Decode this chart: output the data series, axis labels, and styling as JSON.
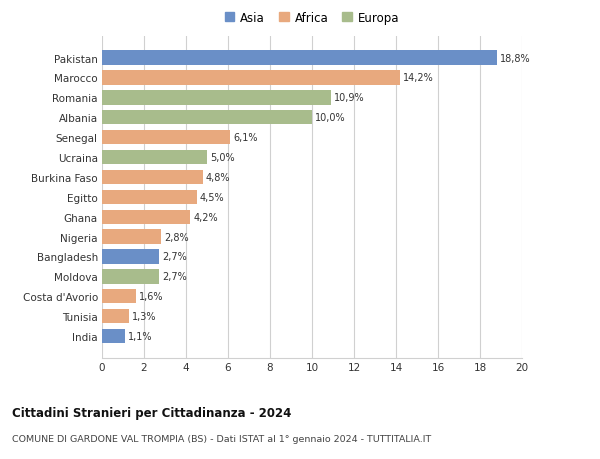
{
  "categories": [
    "India",
    "Tunisia",
    "Costa d'Avorio",
    "Moldova",
    "Bangladesh",
    "Nigeria",
    "Ghana",
    "Egitto",
    "Burkina Faso",
    "Ucraina",
    "Senegal",
    "Albania",
    "Romania",
    "Marocco",
    "Pakistan"
  ],
  "values": [
    1.1,
    1.3,
    1.6,
    2.7,
    2.7,
    2.8,
    4.2,
    4.5,
    4.8,
    5.0,
    6.1,
    10.0,
    10.9,
    14.2,
    18.8
  ],
  "labels": [
    "1,1%",
    "1,3%",
    "1,6%",
    "2,7%",
    "2,7%",
    "2,8%",
    "4,2%",
    "4,5%",
    "4,8%",
    "5,0%",
    "6,1%",
    "10,0%",
    "10,9%",
    "14,2%",
    "18,8%"
  ],
  "colors": [
    "#6a8fc7",
    "#e8a97e",
    "#e8a97e",
    "#a8bc8c",
    "#6a8fc7",
    "#e8a97e",
    "#e8a97e",
    "#e8a97e",
    "#e8a97e",
    "#a8bc8c",
    "#e8a97e",
    "#a8bc8c",
    "#a8bc8c",
    "#e8a97e",
    "#6a8fc7"
  ],
  "legend_labels": [
    "Asia",
    "Africa",
    "Europa"
  ],
  "legend_colors": [
    "#6a8fc7",
    "#e8a97e",
    "#a8bc8c"
  ],
  "title1": "Cittadini Stranieri per Cittadinanza - 2024",
  "title2": "COMUNE DI GARDONE VAL TROMPIA (BS) - Dati ISTAT al 1° gennaio 2024 - TUTTITALIA.IT",
  "xlim": [
    0,
    20
  ],
  "xticks": [
    0,
    2,
    4,
    6,
    8,
    10,
    12,
    14,
    16,
    18,
    20
  ],
  "background_color": "#ffffff",
  "grid_color": "#d0d0d0",
  "bar_height": 0.72
}
